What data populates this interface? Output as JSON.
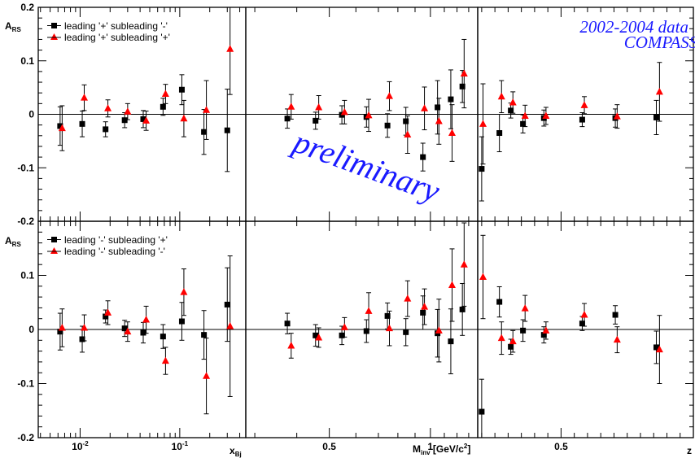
{
  "chart_data": {
    "type": "scatter",
    "ylabel": "A",
    "ylabel_sub": "RS",
    "ylim": [
      -0.2,
      0.2
    ],
    "yticks": [
      "0.2",
      "0.1",
      "0",
      "-0.1",
      "-0.2"
    ],
    "annotations": {
      "data_period": "2002-2004 data",
      "experiment": "COMPASS",
      "status": "preliminary"
    },
    "legend_top": [
      "leading '+' subleading '-'",
      "leading '+' subleading '+'"
    ],
    "legend_bottom": [
      "leading '-' subleading '+'",
      "leading '-' subleading '-'"
    ],
    "colors": {
      "black": "#000000",
      "red": "#ff0000",
      "blue": "#1a1aff"
    },
    "panels": {
      "xbj": {
        "xlabel": "x",
        "xlabel_sub": "Bj",
        "xscale": "log",
        "xlim": [
          0.0038,
          0.46
        ],
        "xticks": [
          {
            "v": 0.01,
            "label": "10"
          },
          {
            "v": 0.1,
            "label": "10"
          }
        ],
        "xtick_sup": [
          "-2",
          "-1"
        ],
        "top": {
          "black": [
            [
              0.0063,
              -0.022,
              0.036
            ],
            [
              0.0105,
              -0.018,
              0.024
            ],
            [
              0.018,
              -0.028,
              0.014
            ],
            [
              0.028,
              -0.011,
              0.014
            ],
            [
              0.043,
              -0.009,
              0.016
            ],
            [
              0.068,
              0.014,
              0.016
            ],
            [
              0.105,
              0.046,
              0.028
            ],
            [
              0.175,
              -0.033,
              0.042
            ],
            [
              0.3,
              -0.03,
              0.077
            ]
          ],
          "red": [
            [
              0.0066,
              -0.026,
              0.042
            ],
            [
              0.011,
              0.031,
              0.024
            ],
            [
              0.019,
              0.011,
              0.016
            ],
            [
              0.03,
              0.005,
              0.015
            ],
            [
              0.046,
              -0.012,
              0.018
            ],
            [
              0.072,
              0.038,
              0.018
            ],
            [
              0.11,
              -0.008,
              0.034
            ],
            [
              0.185,
              0.008,
              0.055
            ],
            [
              0.32,
              0.122,
              0.085
            ]
          ]
        },
        "bottom": {
          "black": [
            [
              0.0063,
              -0.004,
              0.034
            ],
            [
              0.0105,
              -0.018,
              0.024
            ],
            [
              0.018,
              0.024,
              0.012
            ],
            [
              0.028,
              0.002,
              0.015
            ],
            [
              0.043,
              -0.006,
              0.019
            ],
            [
              0.068,
              -0.013,
              0.022
            ],
            [
              0.105,
              0.015,
              0.035
            ],
            [
              0.175,
              -0.01,
              0.045
            ],
            [
              0.3,
              0.046,
              0.068
            ]
          ],
          "red": [
            [
              0.0066,
              0.003,
              0.035
            ],
            [
              0.011,
              0.003,
              0.024
            ],
            [
              0.019,
              0.031,
              0.022
            ],
            [
              0.03,
              -0.004,
              0.018
            ],
            [
              0.046,
              0.018,
              0.025
            ],
            [
              0.072,
              -0.058,
              0.025
            ],
            [
              0.11,
              0.069,
              0.043
            ],
            [
              0.185,
              -0.086,
              0.07
            ],
            [
              0.32,
              0.006,
              0.13
            ]
          ]
        }
      },
      "minv": {
        "xlabel": "M",
        "xlabel_sub": "inv",
        "xlabel_rest": " [GeV/c",
        "xlabel_sup": "2",
        "xlabel_end": "]",
        "xscale": "log",
        "xlim": [
          0.282,
          1.383
        ],
        "xticks": [
          {
            "v": 0.5,
            "label": "0.5"
          },
          {
            "v": 1,
            "label": "1"
          }
        ],
        "top": {
          "black": [
            [
              0.375,
              -0.008,
              0.018
            ],
            [
              0.455,
              -0.012,
              0.016
            ],
            [
              0.545,
              -0.001,
              0.017
            ],
            [
              0.645,
              -0.005,
              0.019
            ],
            [
              0.745,
              -0.021,
              0.022
            ],
            [
              0.845,
              -0.013,
              0.026
            ],
            [
              0.95,
              -0.08,
              0.026
            ],
            [
              1.05,
              0.013,
              0.05
            ],
            [
              1.15,
              0.028,
              0.055
            ],
            [
              1.245,
              0.052,
              0.03
            ]
          ],
          "red": [
            [
              0.385,
              0.014,
              0.023
            ],
            [
              0.465,
              0.013,
              0.022
            ],
            [
              0.555,
              0.004,
              0.022
            ],
            [
              0.655,
              -0.002,
              0.03
            ],
            [
              0.755,
              0.034,
              0.027
            ],
            [
              0.855,
              -0.038,
              0.035
            ],
            [
              0.96,
              0.011,
              0.04
            ],
            [
              1.06,
              -0.013,
              0.043
            ],
            [
              1.16,
              -0.035,
              0.053
            ],
            [
              1.26,
              0.076,
              0.064
            ]
          ]
        },
        "bottom": {
          "black": [
            [
              0.375,
              0.011,
              0.019
            ],
            [
              0.455,
              -0.011,
              0.02
            ],
            [
              0.545,
              -0.011,
              0.017
            ],
            [
              0.645,
              -0.003,
              0.021
            ],
            [
              0.745,
              0.025,
              0.024
            ],
            [
              0.845,
              -0.005,
              0.025
            ],
            [
              0.95,
              0.031,
              0.031
            ],
            [
              1.05,
              -0.007,
              0.044
            ],
            [
              1.15,
              -0.022,
              0.06
            ],
            [
              1.245,
              0.037,
              0.048
            ]
          ],
          "red": [
            [
              0.385,
              -0.03,
              0.023
            ],
            [
              0.465,
              -0.015,
              0.018
            ],
            [
              0.555,
              0.004,
              0.018
            ],
            [
              0.655,
              0.034,
              0.034
            ],
            [
              0.755,
              0.002,
              0.032
            ],
            [
              0.855,
              0.057,
              0.033
            ],
            [
              0.96,
              0.042,
              0.033
            ],
            [
              1.06,
              -0.002,
              0.058
            ],
            [
              1.16,
              0.082,
              0.067
            ],
            [
              1.26,
              0.12,
              0.077
            ]
          ]
        }
      },
      "z": {
        "xlabel": "z",
        "xscale": "linear",
        "xlim": [
          0.185,
          1.0
        ],
        "xticks": [
          {
            "v": 0.5,
            "label": "0.5"
          }
        ],
        "top": {
          "black": [
            [
              0.2,
              -0.102,
              0.06
            ],
            [
              0.267,
              -0.035,
              0.035
            ],
            [
              0.31,
              0.007,
              0.014
            ],
            [
              0.356,
              -0.018,
              0.017
            ],
            [
              0.435,
              -0.007,
              0.015
            ],
            [
              0.58,
              -0.01,
              0.013
            ],
            [
              0.705,
              -0.007,
              0.017
            ],
            [
              0.86,
              -0.006,
              0.032
            ]
          ],
          "red": [
            [
              0.205,
              -0.018,
              0.075
            ],
            [
              0.275,
              0.033,
              0.03
            ],
            [
              0.318,
              0.022,
              0.02
            ],
            [
              0.364,
              -0.003,
              0.02
            ],
            [
              0.443,
              -0.003,
              0.016
            ],
            [
              0.588,
              0.017,
              0.016
            ],
            [
              0.712,
              -0.004,
              0.022
            ],
            [
              0.872,
              0.042,
              0.055
            ]
          ]
        },
        "bottom": {
          "black": [
            [
              0.2,
              -0.152,
              0.06
            ],
            [
              0.267,
              0.051,
              0.028
            ],
            [
              0.31,
              -0.032,
              0.014
            ],
            [
              0.356,
              -0.002,
              0.02
            ],
            [
              0.435,
              -0.01,
              0.015
            ],
            [
              0.58,
              0.011,
              0.013
            ],
            [
              0.705,
              0.027,
              0.017
            ],
            [
              0.86,
              -0.033,
              0.03
            ]
          ],
          "red": [
            [
              0.205,
              0.097,
              0.077
            ],
            [
              0.275,
              -0.016,
              0.03
            ],
            [
              0.318,
              -0.022,
              0.02
            ],
            [
              0.364,
              0.039,
              0.024
            ],
            [
              0.443,
              -0.002,
              0.016
            ],
            [
              0.588,
              0.027,
              0.021
            ],
            [
              0.712,
              -0.019,
              0.024
            ],
            [
              0.872,
              -0.037,
              0.063
            ]
          ]
        }
      }
    }
  }
}
